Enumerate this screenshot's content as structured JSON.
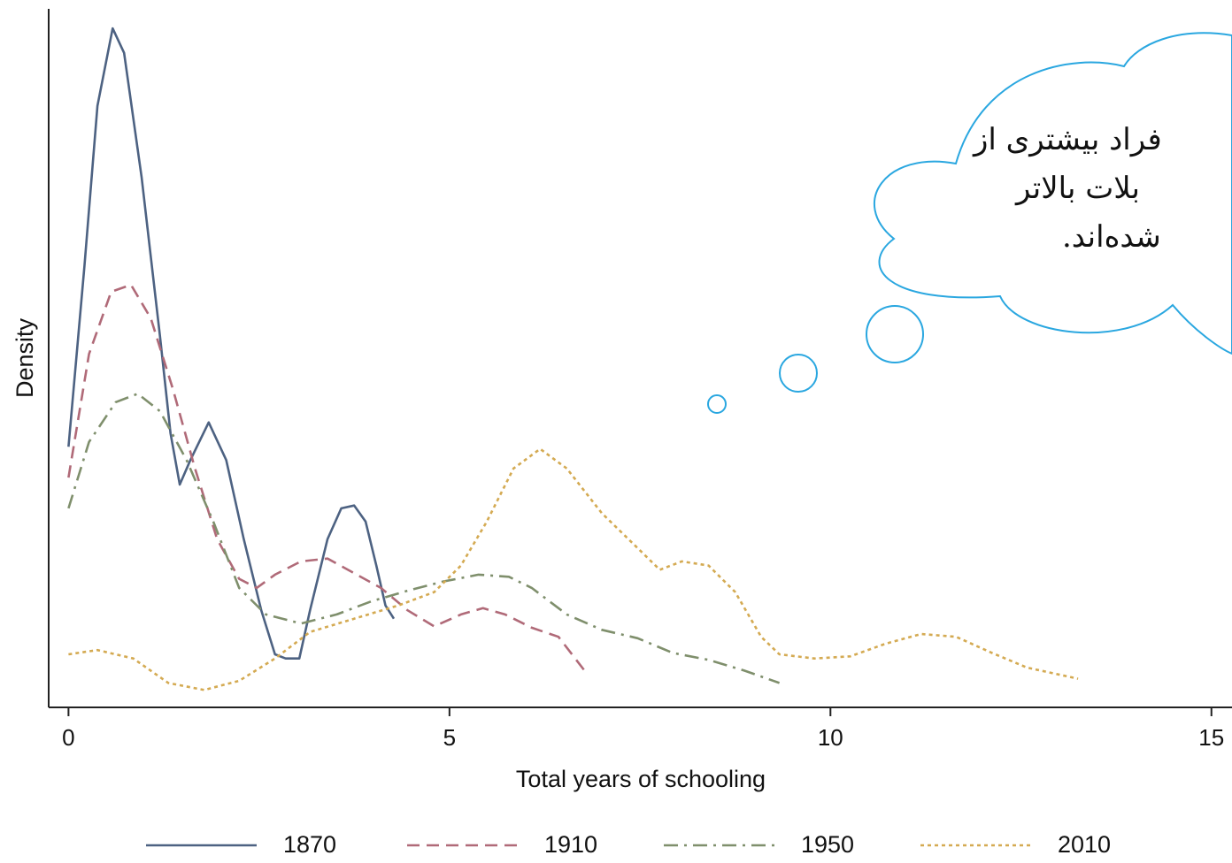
{
  "chart_data": {
    "type": "line",
    "xlabel": "Total years of schooling",
    "ylabel": "Density",
    "xlim": [
      -0.26,
      15.27
    ],
    "xticks": [
      0,
      5,
      10,
      15
    ],
    "ylim": [
      0,
      1
    ],
    "annotation": [
      "فراد بیشتری از",
      "بلات بالاتر",
      "شده‌اند."
    ],
    "series": [
      {
        "name": "1870",
        "color": "#4d6282",
        "dash": "solid",
        "x": [
          0,
          0.21,
          0.38,
          0.58,
          0.73,
          0.96,
          1.2,
          1.34,
          1.46,
          1.6,
          1.84,
          2.07,
          2.3,
          2.53,
          2.71,
          2.85,
          3.03,
          3.17,
          3.4,
          3.58,
          3.75,
          3.9,
          4.04,
          4.16,
          4.27
        ],
        "values": [
          0.373,
          0.633,
          0.861,
          0.972,
          0.937,
          0.759,
          0.532,
          0.392,
          0.319,
          0.354,
          0.408,
          0.354,
          0.241,
          0.139,
          0.076,
          0.07,
          0.07,
          0.139,
          0.241,
          0.285,
          0.289,
          0.266,
          0.203,
          0.146,
          0.127
        ]
      },
      {
        "name": "1910",
        "color": "#b06a78",
        "dash": "dashed",
        "x": [
          0,
          0.27,
          0.56,
          0.82,
          1.08,
          1.37,
          1.66,
          1.95,
          2.24,
          2.47,
          2.71,
          3.05,
          3.4,
          3.75,
          4.1,
          4.45,
          4.8,
          5.15,
          5.44,
          5.73,
          6.08,
          6.43,
          6.77
        ],
        "values": [
          0.329,
          0.506,
          0.595,
          0.605,
          0.557,
          0.456,
          0.342,
          0.241,
          0.184,
          0.171,
          0.19,
          0.209,
          0.213,
          0.192,
          0.171,
          0.139,
          0.116,
          0.133,
          0.142,
          0.133,
          0.114,
          0.101,
          0.053
        ]
      },
      {
        "name": "1950",
        "color": "#7f8f6c",
        "dash": "dashdot",
        "x": [
          0,
          0.27,
          0.62,
          0.91,
          1.2,
          1.55,
          1.9,
          2.24,
          2.59,
          3.05,
          3.52,
          3.98,
          4.45,
          4.91,
          5.38,
          5.78,
          6.08,
          6.54,
          7.0,
          7.47,
          7.93,
          8.4,
          8.86,
          9.33
        ],
        "values": [
          0.285,
          0.38,
          0.437,
          0.449,
          0.424,
          0.354,
          0.266,
          0.171,
          0.133,
          0.12,
          0.133,
          0.152,
          0.167,
          0.18,
          0.19,
          0.187,
          0.171,
          0.133,
          0.111,
          0.099,
          0.078,
          0.068,
          0.053,
          0.035
        ]
      },
      {
        "name": "2010",
        "color": "#d4aa52",
        "dash": "dotted",
        "x": [
          0,
          0.38,
          0.85,
          1.31,
          1.78,
          2.24,
          2.71,
          3.17,
          3.75,
          4.33,
          4.8,
          5.15,
          5.49,
          5.84,
          6.19,
          6.54,
          7.0,
          7.47,
          7.76,
          8.05,
          8.4,
          8.75,
          9.09,
          9.33,
          9.79,
          10.26,
          10.72,
          11.19,
          11.65,
          12.12,
          12.58,
          13.25
        ],
        "values": [
          0.076,
          0.082,
          0.07,
          0.035,
          0.025,
          0.038,
          0.07,
          0.108,
          0.127,
          0.146,
          0.165,
          0.203,
          0.266,
          0.342,
          0.37,
          0.342,
          0.278,
          0.228,
          0.197,
          0.209,
          0.203,
          0.165,
          0.101,
          0.076,
          0.07,
          0.073,
          0.091,
          0.105,
          0.101,
          0.078,
          0.057,
          0.041
        ]
      }
    ]
  }
}
